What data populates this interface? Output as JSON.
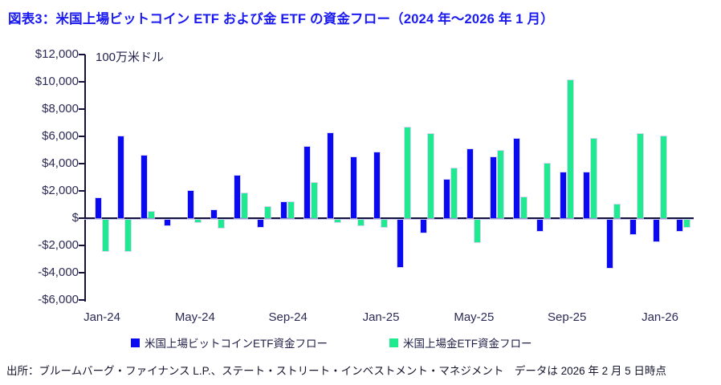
{
  "title": "図表3：米国上場ビットコイン ETF および金 ETF の資金フロー（2024 年～2026 年 1 月）",
  "unit_label": "100万米ドル",
  "source": "出所：ブルームバーグ・ファイナンス L.P.、ステート・ストリート・インベストメント・マネジメント　データは 2026 年 2 月 5 日時点",
  "colors": {
    "title": "#1a1af0",
    "btc_bar": "#0a0af2",
    "gold_bar": "#1fea90",
    "axis": "#13133d",
    "tick_text": "#2b2b55",
    "bar_outline": "#cfcbf5"
  },
  "legend": [
    {
      "label": "米国上場ビットコインETF資金フロー",
      "color": "#0a0af2"
    },
    {
      "label": "米国上場金ETF資金フロー",
      "color": "#1fea90"
    }
  ],
  "chart_data": {
    "type": "bar",
    "title": "米国上場ビットコインETFおよび金ETFの資金フロー",
    "ylabel": "100万米ドル",
    "ylim": [
      -6000,
      12000
    ],
    "grid": false,
    "legend_position": "bottom",
    "y_ticks": [
      12000,
      10000,
      8000,
      6000,
      4000,
      2000,
      0,
      -2000,
      -4000,
      -6000
    ],
    "y_tick_labels": [
      "$12,000",
      "$10,000",
      "$8,000",
      "$6,000",
      "$4,000",
      "$2,000",
      "$",
      "-$2,000",
      "-$4,000",
      "-$6,000"
    ],
    "x_tick_labels": [
      "Jan-24",
      "May-24",
      "Sep-24",
      "Jan-25",
      "May-25",
      "Sep-25",
      "Jan-26"
    ],
    "x_tick_indices": [
      0,
      4,
      8,
      12,
      16,
      20,
      24
    ],
    "categories": [
      "Jan-24",
      "Feb-24",
      "Mar-24",
      "Apr-24",
      "May-24",
      "Jun-24",
      "Jul-24",
      "Aug-24",
      "Sep-24",
      "Oct-24",
      "Nov-24",
      "Dec-24",
      "Jan-25",
      "Feb-25",
      "Mar-25",
      "Apr-25",
      "May-25",
      "Jun-25",
      "Jul-25",
      "Aug-25",
      "Sep-25",
      "Oct-25",
      "Nov-25",
      "Dec-25",
      "Jan-26",
      "Feb-26"
    ],
    "series": [
      {
        "name": "米国上場ビットコインETF資金フロー",
        "color": "#0a0af2",
        "values": [
          1450,
          6000,
          4600,
          -400,
          2000,
          600,
          3100,
          -500,
          1150,
          5250,
          6250,
          4500,
          4850,
          -3450,
          -950,
          2800,
          5050,
          4500,
          5800,
          -850,
          3350,
          3350,
          -3550,
          -1050,
          -1600,
          -800
        ]
      },
      {
        "name": "米国上場金ETF資金フロー",
        "color": "#1fea90",
        "values": [
          -2300,
          -2300,
          500,
          0,
          -150,
          -600,
          1850,
          850,
          1150,
          2600,
          -150,
          -400,
          -550,
          6650,
          6200,
          3650,
          -1650,
          4950,
          1550,
          4000,
          10100,
          5850,
          1000,
          6200,
          6000,
          -550
        ]
      }
    ]
  }
}
